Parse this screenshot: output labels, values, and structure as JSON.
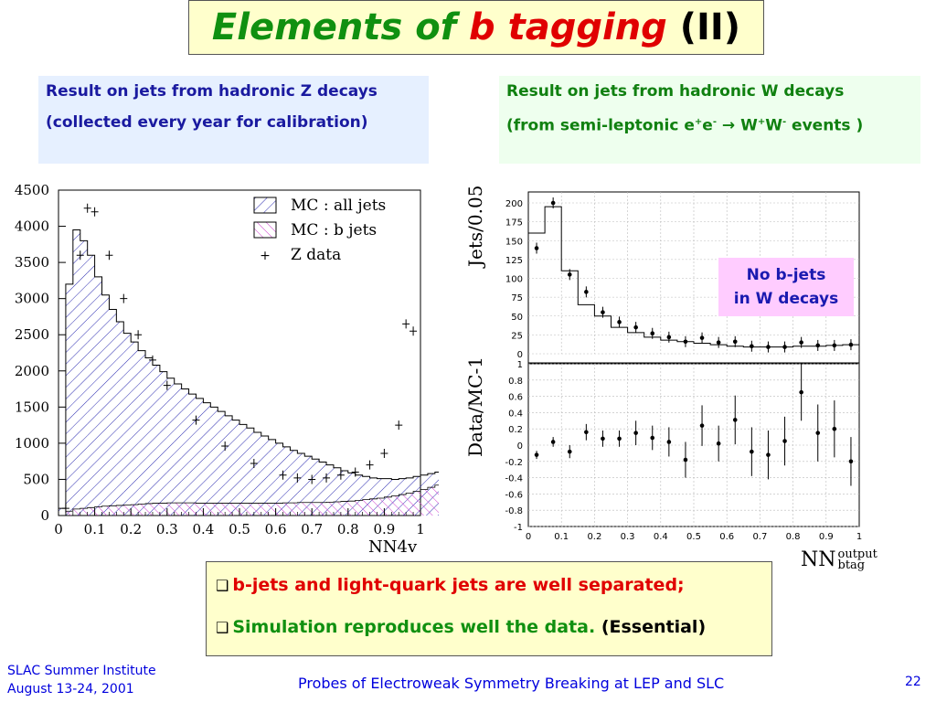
{
  "title": {
    "part1": "Elements of ",
    "part2": "b tagging",
    "part3": " (II)"
  },
  "left_caption": {
    "line1": "Result on jets from hadronic Z decays",
    "line2": "(collected every year for calibration)"
  },
  "right_caption": {
    "line1": "Result on jets from hadronic W decays",
    "line2_a": "(from semi-leptonic e",
    "line2_b": "e",
    "line2_c": " → W",
    "line2_d": "W",
    "line2_e": " events )",
    "sup_plus": "+",
    "sup_minus": "-"
  },
  "no_b_box": {
    "line1": "No b-jets",
    "line2": "in W decays"
  },
  "summary": {
    "line1": "b-jets and light-quark jets are well separated;",
    "line2_a": "Simulation reproduces well the data.",
    "line2_b": " (Essential)"
  },
  "footer": {
    "left_line1": "SLAC Summer Institute",
    "left_line2": "August 13-24, 2001",
    "center": "Probes of Electroweak Symmetry Breaking at LEP and SLC",
    "page": "22"
  },
  "colors": {
    "title_green": "#109010",
    "title_red": "#e00000",
    "caption_blue": "#1a1aa0",
    "footer_blue": "#0000dd",
    "all_jets_hatch": "#2b2bb0",
    "b_jets_hatch": "#d040d0"
  },
  "chart_data": [
    {
      "type": "histogram",
      "xlabel": "NN4v",
      "xlim": [
        0,
        1
      ],
      "ylim": [
        0,
        4500
      ],
      "xticks": [
        "0",
        "0.1",
        "0.2",
        "0.3",
        "0.4",
        "0.5",
        "0.6",
        "0.7",
        "0.8",
        "0.9",
        "1"
      ],
      "yticks": [
        "0",
        "500",
        "1000",
        "1500",
        "2000",
        "2500",
        "3000",
        "3500",
        "4000",
        "4500"
      ],
      "legend": [
        "MC : all jets",
        "MC : b jets",
        "Z data"
      ],
      "legend_marker": "+",
      "legend_placement": "top-right",
      "bin_width": 0.02,
      "series": [
        {
          "name": "MC : all jets",
          "values": [
            100,
            3200,
            3950,
            3800,
            3600,
            3300,
            3050,
            2850,
            2680,
            2520,
            2400,
            2280,
            2180,
            2080,
            1990,
            1900,
            1820,
            1750,
            1680,
            1620,
            1560,
            1500,
            1440,
            1380,
            1320,
            1260,
            1210,
            1150,
            1100,
            1050,
            1000,
            950,
            900,
            860,
            820,
            780,
            740,
            700,
            660,
            620,
            590,
            560,
            540,
            520,
            510,
            510,
            500,
            510,
            520,
            540,
            560,
            580,
            600,
            640,
            690,
            750,
            860,
            1050,
            1600,
            2500
          ]
        },
        {
          "name": "MC : b jets",
          "values": [
            0,
            60,
            90,
            100,
            110,
            120,
            130,
            135,
            140,
            145,
            150,
            160,
            165,
            170,
            170,
            175,
            175,
            175,
            175,
            170,
            170,
            170,
            170,
            170,
            170,
            170,
            170,
            170,
            170,
            170,
            170,
            175,
            175,
            180,
            180,
            180,
            180,
            185,
            190,
            195,
            200,
            210,
            220,
            230,
            240,
            255,
            270,
            290,
            310,
            335,
            360,
            390,
            420,
            480,
            560,
            660,
            800,
            1000,
            1550,
            2450
          ]
        },
        {
          "name": "Z data",
          "x": [
            0.02,
            0.06,
            0.08,
            0.1,
            0.14,
            0.18,
            0.22,
            0.26,
            0.3,
            0.38,
            0.46,
            0.54,
            0.62,
            0.66,
            0.7,
            0.74,
            0.78,
            0.82,
            0.86,
            0.9,
            0.94,
            0.96,
            0.98
          ],
          "y": [
            100,
            3600,
            4250,
            4200,
            3600,
            3000,
            2500,
            2150,
            1800,
            1320,
            960,
            720,
            560,
            520,
            500,
            520,
            560,
            600,
            700,
            860,
            1250,
            2650,
            2550
          ]
        }
      ]
    },
    {
      "type": "histogram",
      "ylabel": "Jets/0.05",
      "xlim": [
        0,
        1
      ],
      "ylim": [
        0,
        200
      ],
      "yticks": [
        "0",
        "25",
        "50",
        "75",
        "100",
        "125",
        "150",
        "175",
        "200"
      ],
      "series": [
        {
          "name": "MC",
          "values": [
            160,
            195,
            110,
            65,
            50,
            35,
            28,
            22,
            18,
            16,
            14,
            12,
            10,
            9,
            9,
            9,
            10,
            10,
            11,
            12
          ]
        },
        {
          "name": "data",
          "x": [
            0.025,
            0.075,
            0.125,
            0.175,
            0.225,
            0.275,
            0.325,
            0.375,
            0.425,
            0.475,
            0.525,
            0.575,
            0.625,
            0.675,
            0.725,
            0.775,
            0.825,
            0.875,
            0.925,
            0.975
          ],
          "y": [
            140,
            200,
            105,
            82,
            55,
            42,
            35,
            27,
            22,
            16,
            21,
            15,
            16,
            10,
            9,
            9,
            15,
            11,
            11,
            12
          ]
        }
      ]
    },
    {
      "type": "scatter",
      "ylabel": "Data/MC-1",
      "xlabel_main": "NN",
      "xlabel_sup": "output",
      "xlabel_sub": "btag",
      "xlim": [
        0,
        1
      ],
      "ylim": [
        -1,
        1
      ],
      "xticks": [
        "0",
        "0.1",
        "0.2",
        "0.3",
        "0.4",
        "0.5",
        "0.6",
        "0.7",
        "0.8",
        "0.9",
        "1"
      ],
      "yticks": [
        "1",
        "0.8",
        "0.6",
        "0.4",
        "0.2",
        "0",
        "-0.2",
        "-0.4",
        "-0.6",
        "-0.8",
        "-1"
      ],
      "x": [
        0.025,
        0.075,
        0.125,
        0.175,
        0.225,
        0.275,
        0.325,
        0.375,
        0.425,
        0.475,
        0.525,
        0.575,
        0.625,
        0.675,
        0.725,
        0.775,
        0.825,
        0.875,
        0.925,
        0.975
      ],
      "y": [
        -0.12,
        0.04,
        -0.08,
        0.16,
        0.08,
        0.08,
        0.15,
        0.09,
        0.04,
        -0.18,
        0.24,
        0.02,
        0.31,
        -0.08,
        -0.12,
        0.05,
        0.65,
        0.15,
        0.2,
        -0.2
      ],
      "err": [
        0.05,
        0.06,
        0.08,
        0.1,
        0.1,
        0.1,
        0.15,
        0.15,
        0.18,
        0.22,
        0.25,
        0.22,
        0.3,
        0.3,
        0.3,
        0.3,
        0.35,
        0.35,
        0.35,
        0.3
      ]
    }
  ]
}
